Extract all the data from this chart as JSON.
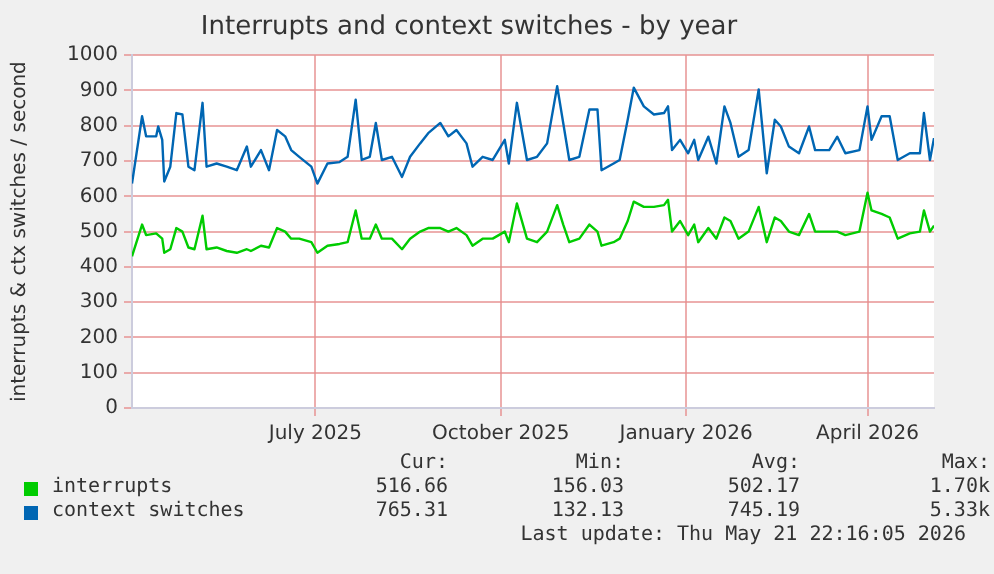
{
  "chart_data": {
    "type": "line",
    "title": "Interrupts and context switches - by year",
    "ylabel": "interrupts & ctx switches / second",
    "x": [
      "2025-04-18",
      "2025-04-23",
      "2025-04-25",
      "2025-04-30",
      "2025-05-01",
      "2025-05-03",
      "2025-05-04",
      "2025-05-07",
      "2025-05-10",
      "2025-05-13",
      "2025-05-16",
      "2025-05-19",
      "2025-05-23",
      "2025-05-25",
      "2025-05-30",
      "2025-06-04",
      "2025-06-09",
      "2025-06-14",
      "2025-06-16",
      "2025-06-21",
      "2025-06-25",
      "2025-06-29",
      "2025-07-03",
      "2025-07-06",
      "2025-07-10",
      "2025-07-16",
      "2025-07-19",
      "2025-07-24",
      "2025-07-30",
      "2025-08-03",
      "2025-08-07",
      "2025-08-10",
      "2025-08-14",
      "2025-08-17",
      "2025-08-20",
      "2025-08-25",
      "2025-08-30",
      "2025-09-03",
      "2025-09-08",
      "2025-09-12",
      "2025-09-18",
      "2025-09-22",
      "2025-09-26",
      "2025-10-01",
      "2025-10-04",
      "2025-10-09",
      "2025-10-14",
      "2025-10-20",
      "2025-10-22",
      "2025-10-26",
      "2025-10-31",
      "2025-11-05",
      "2025-11-10",
      "2025-11-15",
      "2025-11-18",
      "2025-11-21",
      "2025-11-26",
      "2025-12-01",
      "2025-12-05",
      "2025-12-07",
      "2025-12-13",
      "2025-12-16",
      "2025-12-20",
      "2025-12-23",
      "2025-12-28",
      "2026-01-02",
      "2026-01-07",
      "2026-01-09",
      "2026-01-11",
      "2026-01-15",
      "2026-01-19",
      "2026-01-22",
      "2026-01-24",
      "2026-01-29",
      "2026-02-02",
      "2026-02-06",
      "2026-02-09",
      "2026-02-13",
      "2026-02-18",
      "2026-02-23",
      "2026-02-27",
      "2026-03-03",
      "2026-03-06",
      "2026-03-10",
      "2026-03-15",
      "2026-03-20",
      "2026-03-23",
      "2026-03-30",
      "2026-04-03",
      "2026-04-07",
      "2026-04-14",
      "2026-04-18",
      "2026-04-20",
      "2026-04-25",
      "2026-04-29",
      "2026-05-03",
      "2026-05-09",
      "2026-05-14",
      "2026-05-16",
      "2026-05-19",
      "2026-05-21"
    ],
    "series": [
      {
        "name": "interrupts",
        "color": "#00cc00",
        "values": [
          430,
          520,
          490,
          495,
          490,
          480,
          440,
          450,
          510,
          500,
          455,
          450,
          545,
          450,
          455,
          445,
          440,
          450,
          445,
          460,
          455,
          510,
          500,
          480,
          480,
          470,
          440,
          460,
          465,
          470,
          560,
          480,
          480,
          520,
          480,
          480,
          450,
          480,
          500,
          510,
          510,
          500,
          510,
          490,
          460,
          480,
          480,
          500,
          470,
          580,
          480,
          470,
          500,
          575,
          520,
          470,
          480,
          520,
          500,
          460,
          470,
          480,
          530,
          585,
          570,
          570,
          575,
          590,
          500,
          530,
          490,
          520,
          470,
          510,
          480,
          540,
          530,
          480,
          500,
          570,
          470,
          540,
          530,
          500,
          490,
          550,
          500,
          500,
          500,
          490,
          500,
          610,
          560,
          550,
          540,
          480,
          495,
          500,
          560,
          500,
          517
        ]
      },
      {
        "name": "context switches",
        "color": "#0066b3",
        "values": [
          636,
          827,
          770,
          770,
          798,
          760,
          642,
          684,
          836,
          832,
          684,
          674,
          865,
          684,
          693,
          684,
          674,
          741,
          684,
          731,
          674,
          788,
          770,
          731,
          712,
          684,
          636,
          693,
          697,
          712,
          874,
          703,
          712,
          808,
          703,
          712,
          655,
          712,
          750,
          779,
          808,
          770,
          788,
          750,
          684,
          712,
          703,
          760,
          693,
          865,
          703,
          712,
          750,
          912,
          808,
          703,
          712,
          846,
          846,
          674,
          693,
          703,
          817,
          908,
          855,
          832,
          836,
          855,
          731,
          760,
          722,
          760,
          703,
          769,
          693,
          855,
          808,
          712,
          731,
          903,
          665,
          817,
          798,
          741,
          722,
          798,
          731,
          731,
          769,
          722,
          731,
          855,
          760,
          827,
          827,
          703,
          722,
          722,
          836,
          703,
          765
        ]
      }
    ],
    "xlim": [
      "2025-04-18",
      "2026-05-21"
    ],
    "xticks": [
      {
        "value": "2025-07-18",
        "label": "July 2025"
      },
      {
        "value": "2025-10-18",
        "label": "October 2025"
      },
      {
        "value": "2026-01-18",
        "label": "January 2026"
      },
      {
        "value": "2026-04-18",
        "label": "April 2026"
      }
    ],
    "ylim": [
      0,
      1000
    ],
    "yticks": [
      0,
      100,
      200,
      300,
      400,
      500,
      600,
      700,
      800,
      900,
      1000
    ],
    "grid": true,
    "legend": "bottom",
    "marker": "none",
    "line_style": "solid",
    "annotations": [
      "Cur:",
      "Min:",
      "Avg:",
      "Max:",
      "516.66",
      "156.03",
      "502.17",
      "1.70k",
      "765.31",
      "132.13",
      "745.19",
      "5.33k",
      "Last update: Thu May 21 22:16:05 2026"
    ]
  }
}
